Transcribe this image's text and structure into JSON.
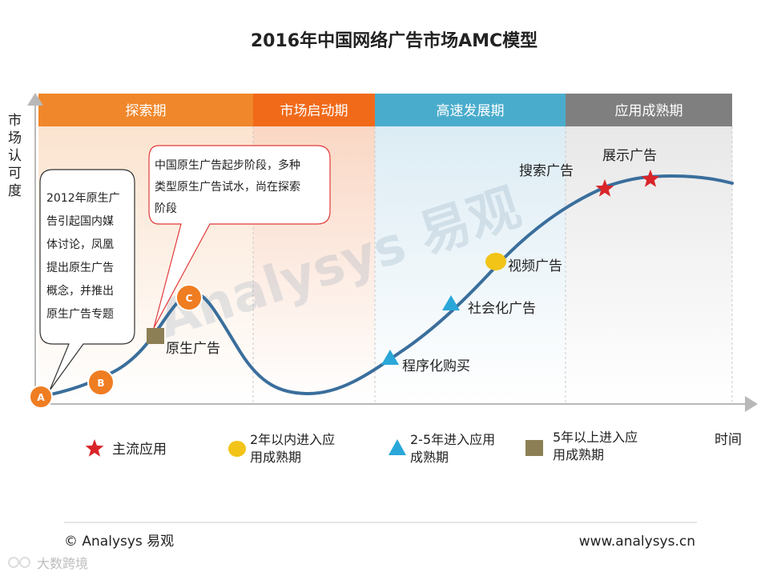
{
  "title": "2016年中国网络广告市场AMC模型",
  "y_axis_label": [
    "市",
    "场",
    "认",
    "可",
    "度"
  ],
  "x_axis_label": "时间",
  "phases": [
    {
      "label": "探索期",
      "color": "#f0872a"
    },
    {
      "label": "市场启动期",
      "color": "#f06a1a"
    },
    {
      "label": "高速发展期",
      "color": "#4aaccc"
    },
    {
      "label": "应用成熟期",
      "color": "#7f7f7f"
    }
  ],
  "callouts": {
    "left": [
      "2012年原生广",
      "告引起国内媒",
      "体讨论，凤凰",
      "提出原生广告",
      "概念，并推出",
      "原生广告专题"
    ],
    "right": [
      "中国原生广告起步阶段，多种",
      "类型原生广告试水，尚在探索",
      "阶段"
    ]
  },
  "stage_markers": [
    "A",
    "B",
    "C"
  ],
  "curve_labels": {
    "native": "原生广告",
    "programmatic": "程序化购买",
    "social": "社会化广告",
    "video": "视频广告",
    "search": "搜索广告",
    "display": "展示广告"
  },
  "legend": [
    {
      "label": [
        "主流应用"
      ],
      "icon": "star-icon",
      "color": "#d9252a"
    },
    {
      "label": [
        "2年以内进入应",
        "用成熟期"
      ],
      "icon": "circle-icon",
      "color": "#f2c418"
    },
    {
      "label": [
        "2-5年进入应用",
        "成熟期"
      ],
      "icon": "triangle-icon",
      "color": "#2aa7d9"
    },
    {
      "label": [
        "5年以上进入应",
        "用成熟期"
      ],
      "icon": "square-icon",
      "color": "#8c7f55"
    }
  ],
  "watermark_text": "Analysys 易观",
  "footer": {
    "left": "© Analysys 易观",
    "right": "www.analysys.cn",
    "bottom_watermark": "大数跨境"
  },
  "colors": {
    "curve": "#3a6e9c",
    "marker_orange": "#ef7d22",
    "callout_red": "#e03a3a"
  }
}
